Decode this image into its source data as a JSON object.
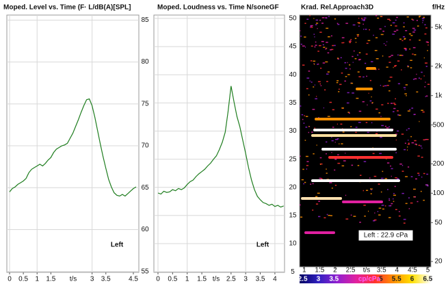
{
  "chart_data": [
    {
      "type": "line",
      "title": "Moped. Level vs. Time (F· L/dB(A)[SPL]",
      "color": "#1e7d1e",
      "x": [
        0,
        0.1,
        0.2,
        0.3,
        0.4,
        0.5,
        0.6,
        0.7,
        0.8,
        0.9,
        1.0,
        1.1,
        1.2,
        1.3,
        1.4,
        1.5,
        1.6,
        1.7,
        1.8,
        1.9,
        2.0,
        2.1,
        2.2,
        2.3,
        2.4,
        2.5,
        2.6,
        2.7,
        2.8,
        2.9,
        3.0,
        3.1,
        3.2,
        3.3,
        3.4,
        3.5,
        3.6,
        3.7,
        3.8,
        3.9,
        4.0,
        4.1,
        4.2,
        4.3,
        4.4,
        4.5,
        4.6
      ],
      "values": [
        64.5,
        64.9,
        65.1,
        65.4,
        65.6,
        65.8,
        66.1,
        66.8,
        67.2,
        67.4,
        67.6,
        67.8,
        67.6,
        67.9,
        68.3,
        68.6,
        69.2,
        69.6,
        69.8,
        70.0,
        70.1,
        70.3,
        70.9,
        71.5,
        72.3,
        73.1,
        74.0,
        74.8,
        75.5,
        75.6,
        74.8,
        73.4,
        71.8,
        70.2,
        68.7,
        67.3,
        66.0,
        65.1,
        64.4,
        64.1,
        64.0,
        64.2,
        64.0,
        64.3,
        64.6,
        64.9,
        65.1
      ],
      "xlim": [
        -0.1,
        4.7
      ],
      "xticks": [
        0,
        0.5,
        1,
        1.5,
        3,
        3.5,
        4.5
      ],
      "x_label": "t/s",
      "ylim": [
        54.9,
        85.6
      ],
      "yticks": [
        55,
        60,
        65,
        70,
        75,
        80,
        85
      ],
      "grid": true,
      "annotation": "Left"
    },
    {
      "type": "line",
      "title": "Moped. Loudness vs. Time   N/soneGF",
      "color": "#1e7d1e",
      "x": [
        0,
        0.1,
        0.2,
        0.3,
        0.4,
        0.5,
        0.6,
        0.7,
        0.8,
        0.9,
        1.0,
        1.1,
        1.2,
        1.3,
        1.4,
        1.5,
        1.6,
        1.7,
        1.8,
        1.9,
        2.0,
        2.1,
        2.2,
        2.3,
        2.4,
        2.5,
        2.6,
        2.7,
        2.8,
        2.9,
        3.0,
        3.1,
        3.2,
        3.3,
        3.4,
        3.5,
        3.6,
        3.7,
        3.8,
        3.9,
        4.0,
        4.1,
        4.2,
        4.3
      ],
      "values": [
        19.0,
        18.8,
        19.3,
        19.1,
        19.2,
        19.6,
        19.4,
        19.8,
        19.6,
        19.9,
        20.5,
        21.0,
        21.3,
        21.9,
        22.4,
        22.8,
        23.2,
        23.8,
        24.3,
        25.0,
        25.6,
        26.7,
        28.0,
        29.8,
        33.5,
        38.0,
        35.2,
        32.6,
        30.8,
        28.4,
        26.0,
        23.5,
        21.3,
        19.6,
        18.4,
        17.8,
        17.3,
        17.1,
        16.8,
        17.0,
        16.6,
        16.8,
        16.5,
        16.7
      ],
      "xlim": [
        -0.14,
        4.33
      ],
      "xticks": [
        0,
        0.5,
        1,
        1.5,
        2.5,
        3,
        3.5,
        4
      ],
      "x_label": "t/s",
      "ylim": [
        4.9,
        50.6
      ],
      "yticks": [
        5,
        10,
        15,
        20,
        25,
        30,
        35,
        40,
        45,
        50
      ],
      "grid": true,
      "annotation": "Left"
    },
    {
      "type": "spectrogram",
      "title": "Krad.  Rel.Approach3D",
      "y_label": "f/Hz",
      "xlim": [
        0.85,
        5.1
      ],
      "xticks": [
        1,
        1.5,
        2,
        2.5,
        3.5,
        4,
        4.5,
        5
      ],
      "x_label": "t/s",
      "y_scale": "log",
      "ylim": [
        17.6,
        6680
      ],
      "yticks": [
        {
          "value": 5000,
          "label": "5k"
        },
        {
          "value": 2000,
          "label": "2k"
        },
        {
          "value": 1000,
          "label": "1k"
        },
        500,
        200,
        100,
        50,
        20
      ],
      "annotation": "Left : 22.9 cPa",
      "colorbar": {
        "label": "cp/cPa",
        "lim": [
          2.4,
          6.6
        ],
        "ticks": [
          2.5,
          3,
          3.5,
          5,
          5.5,
          6,
          6.5
        ],
        "colors": [
          "#000060",
          "#3020c0",
          "#9020d0",
          "#e020a0",
          "#ff3030",
          "#ff9000",
          "#ffe000",
          "#ffffff"
        ]
      }
    }
  ]
}
